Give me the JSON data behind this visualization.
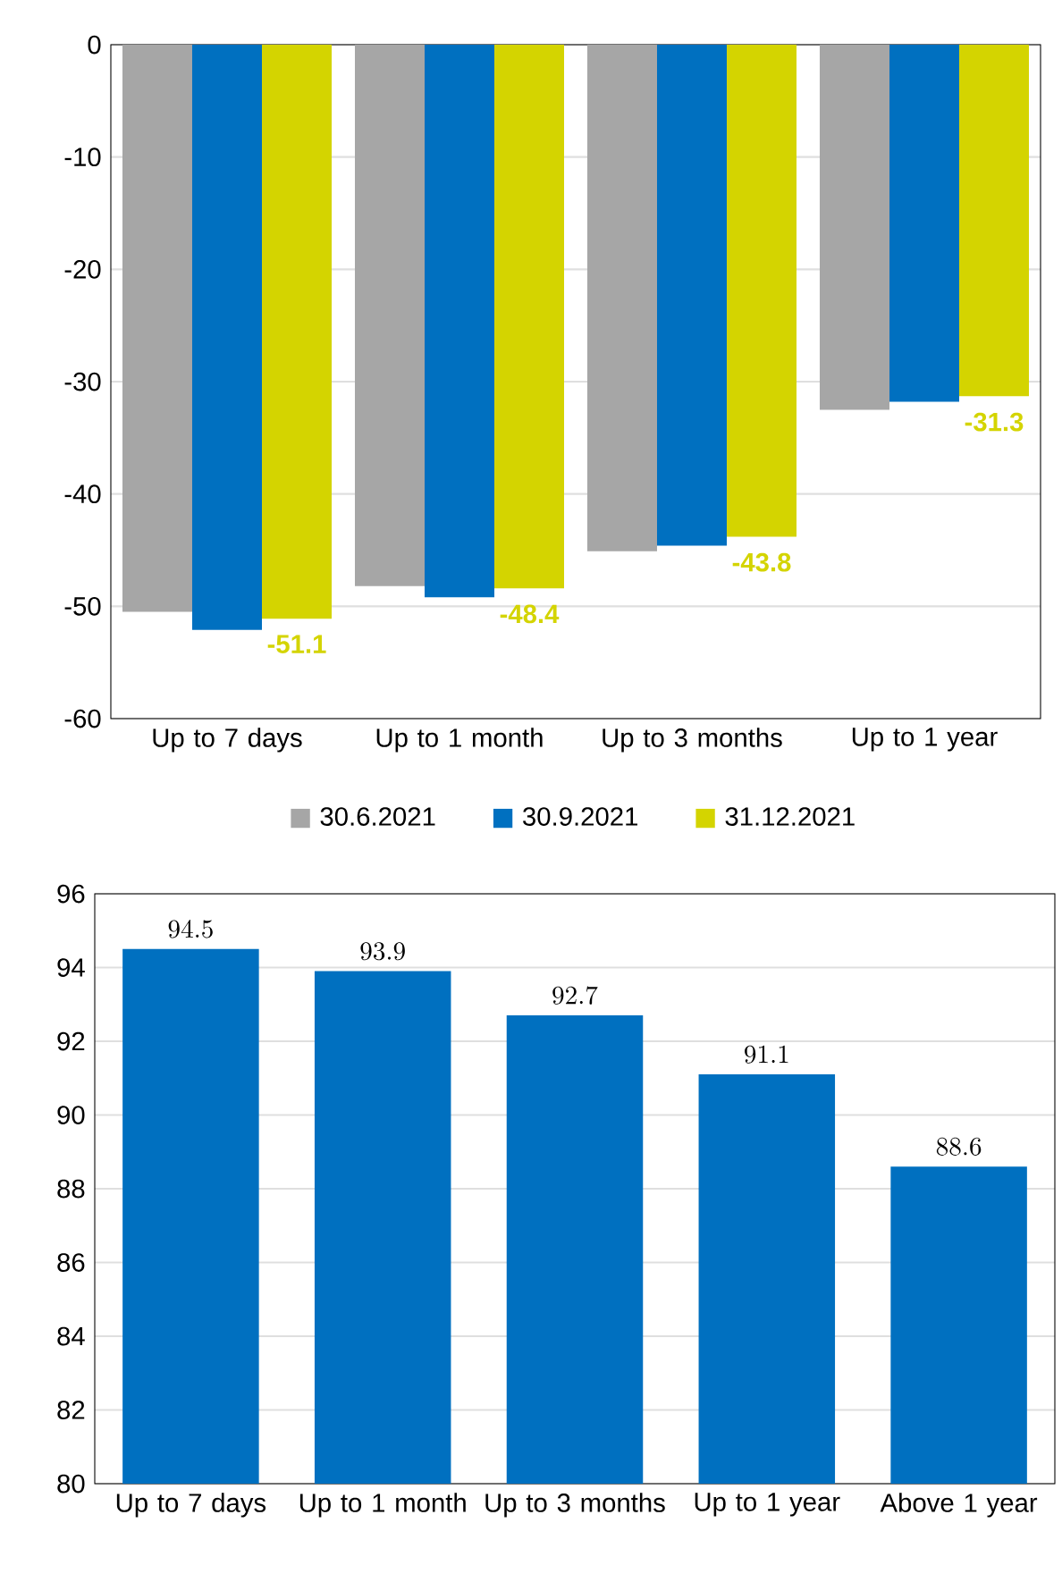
{
  "chart_data": [
    {
      "type": "bar",
      "categories": [
        "Up to 7 days",
        "Up to 1 month",
        "Up to 3 months",
        "Up to 1 year"
      ],
      "series": [
        {
          "name": "30.6.2021",
          "color": "#a6a6a6",
          "values": [
            -50.5,
            -48.2,
            -45.1,
            -32.5
          ]
        },
        {
          "name": "30.9.2021",
          "color": "#0070c0",
          "values": [
            -52.1,
            -49.2,
            -44.6,
            -31.8
          ]
        },
        {
          "name": "31.12.2021",
          "color": "#d4d400",
          "values": [
            -51.1,
            -48.4,
            -43.8,
            -31.3
          ],
          "value_labels": [
            "-51.1",
            "-48.4",
            "-43.8",
            "-31.3"
          ]
        }
      ],
      "ylim": [
        -60,
        0
      ],
      "yticks": [
        -60,
        -50,
        -40,
        -30,
        -20,
        -10,
        0
      ],
      "grid": "y",
      "legend": "bottom"
    },
    {
      "type": "bar",
      "categories": [
        "Up to 7 days",
        "Up to 1 month",
        "Up to 3 months",
        "Up to 1 year",
        "Above 1 year"
      ],
      "values": [
        94.5,
        93.9,
        92.7,
        91.1,
        88.6
      ],
      "color": "#0070c0",
      "ylim": [
        80,
        96
      ],
      "yticks": [
        80,
        82,
        84,
        86,
        88,
        90,
        92,
        94,
        96
      ],
      "grid": "y",
      "data_labels": true
    }
  ]
}
